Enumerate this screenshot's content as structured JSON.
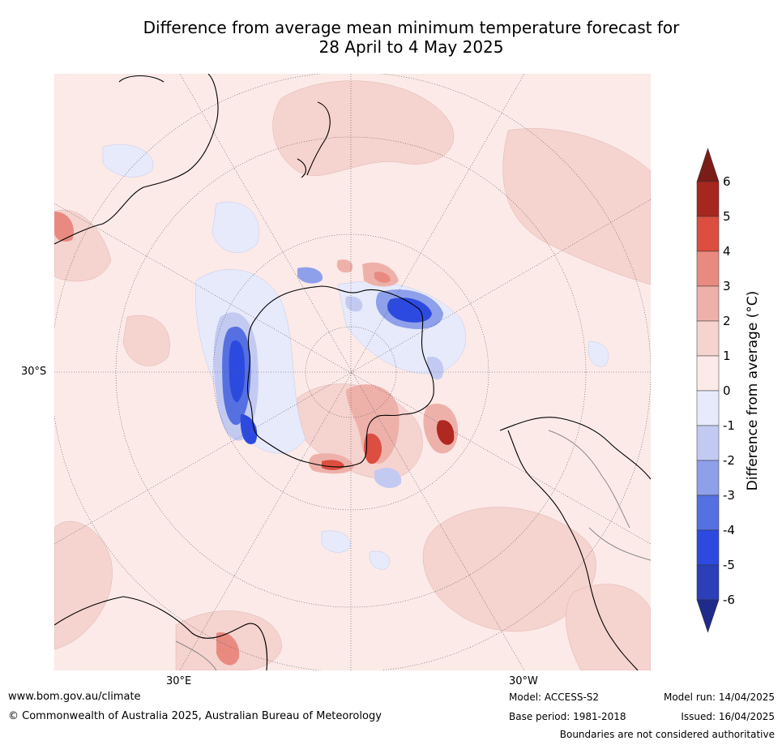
{
  "title": {
    "line1": "Difference from average mean minimum temperature forecast for",
    "line2": "28 April to 4 May 2025"
  },
  "map": {
    "projection": "south polar stereographic",
    "labels": {
      "lat_30s": "30°S",
      "lon_30e": "30°E",
      "lon_30w": "30°W"
    },
    "colors": {
      "neg6": "#1f2a8a",
      "neg5": "#2b3fb8",
      "neg4": "#2d4ae0",
      "neg3": "#5570e0",
      "neg2": "#8ea0ea",
      "neg1": "#c3caf2",
      "neg0": "#e6eafb",
      "pos0": "#fbeae8",
      "pos1": "#f5d3cf",
      "pos2": "#eeb1aa",
      "pos3": "#e98a80",
      "pos4": "#db4e40",
      "pos5": "#b02820",
      "pos6": "#7a1d16"
    }
  },
  "colorbar": {
    "label": "Difference from average (°C)",
    "ticks": [
      "6",
      "5",
      "4",
      "3",
      "2",
      "1",
      "0",
      "-1",
      "-2",
      "-3",
      "-4",
      "-5",
      "-6"
    ]
  },
  "footer": {
    "url": "www.bom.gov.au/climate",
    "copyright": "© Commonwealth of Australia 2025, Australian Bureau of Meteorology",
    "model": "Model: ACCESS-S2",
    "base_period": "Base period: 1981-2018",
    "model_run": "Model run: 14/04/2025",
    "issued": "Issued: 16/04/2025",
    "disclaimer": "Boundaries are not considered authoritative"
  }
}
